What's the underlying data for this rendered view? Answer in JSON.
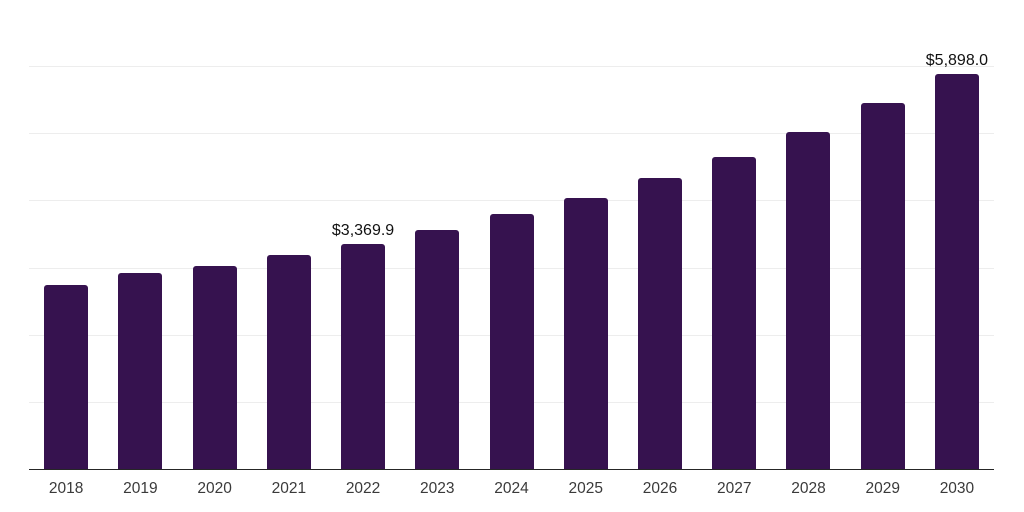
{
  "chart_data": {
    "type": "bar",
    "title": "",
    "xlabel": "",
    "ylabel": "",
    "categories": [
      "2018",
      "2019",
      "2020",
      "2021",
      "2022",
      "2023",
      "2024",
      "2025",
      "2026",
      "2027",
      "2028",
      "2029",
      "2030"
    ],
    "values": [
      2760,
      2930,
      3035,
      3198,
      3369.9,
      3570,
      3810,
      4048,
      4347,
      4660,
      5032,
      5465,
      5898
    ],
    "value_labels": [
      "",
      "",
      "",
      "",
      "$3,369.9",
      "",
      "",
      "",
      "",
      "",
      "",
      "",
      "$5,898.0"
    ],
    "ylim": [
      0,
      7000
    ],
    "gridline_interval": 1000,
    "grid": true,
    "legend": false,
    "colors": {
      "bar": "#36124F",
      "gridline": "#EDEDED",
      "axis_line": "#262626",
      "tick_label": "#3A3A3A",
      "value_label": "#111111",
      "background": "#FFFFFF"
    }
  }
}
